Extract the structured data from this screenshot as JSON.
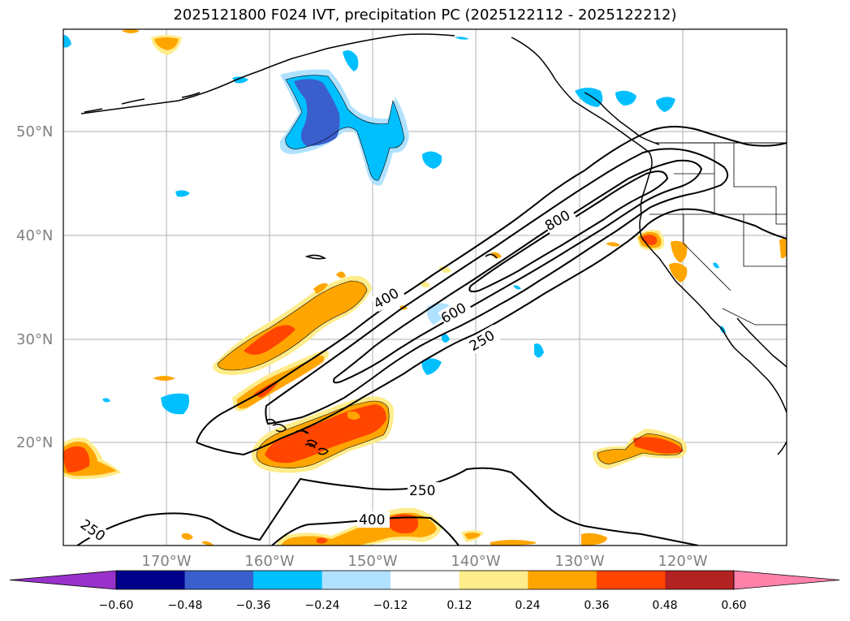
{
  "title": "2025121800 F024 IVT, precipitation PC (2025122112 - 2025122212)",
  "latitude_labels": [
    "50°N",
    "40°N",
    "30°N",
    "20°N"
  ],
  "longitude_labels": [
    "170°W",
    "160°W",
    "150°W",
    "140°W",
    "130°W",
    "120°W"
  ],
  "contour_labels": [
    "800",
    "400",
    "600",
    "250",
    "250",
    "400",
    "250"
  ],
  "colorbar": {
    "ticks": [
      "−0.60",
      "−0.48",
      "−0.36",
      "−0.24",
      "−0.12",
      "0.12",
      "0.24",
      "0.36",
      "0.48",
      "0.60"
    ],
    "colors": [
      "#9932cc",
      "#00008b",
      "#3a5fcd",
      "#00bfff",
      "#b0e2ff",
      "#ffffff",
      "#ffec8b",
      "#ffa500",
      "#ff4500",
      "#b22222",
      "#ff82ab"
    ]
  },
  "colors": {
    "ivt_contour": "#000000",
    "grid": "#b0b0b0",
    "axis_label": "#808080"
  }
}
